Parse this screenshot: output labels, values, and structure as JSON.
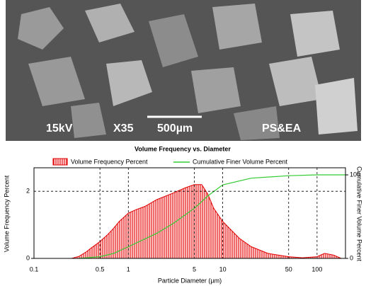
{
  "image": {
    "labels": [
      "15kV",
      "X35",
      "500µm",
      "PS&EA"
    ]
  },
  "chart_data": {
    "type": "area",
    "title": "Volume Frequency vs. Diameter",
    "x_label": "Particle Diameter (µm)",
    "y_label": "Volume Frequency Percent",
    "y2_label": "Cumulative Finer Volume Percent",
    "log_x": true,
    "grid": true,
    "xlim": [
      0.1,
      200
    ],
    "xticks": [
      0.1,
      0.5,
      1,
      5,
      10,
      50,
      100
    ],
    "ylim": [
      0,
      2.7
    ],
    "yticks": [
      0,
      2
    ],
    "y2lim": [
      0,
      108.5
    ],
    "y2ticks": [
      0,
      100
    ],
    "series": [
      {
        "name": "Volume Frequency Percent",
        "color": "#e00000",
        "kind": "area",
        "x": [
          0.25,
          0.3,
          0.36,
          0.4,
          0.5,
          0.6,
          0.7,
          0.8,
          1,
          1.2,
          1.5,
          2,
          3,
          4,
          5,
          6,
          7,
          8,
          10,
          15,
          20,
          30,
          50,
          70,
          100,
          120,
          150,
          180
        ],
        "values": [
          0,
          0.06,
          0.2,
          0.3,
          0.5,
          0.7,
          0.9,
          1.1,
          1.35,
          1.45,
          1.55,
          1.75,
          1.95,
          2.1,
          2.2,
          2.2,
          1.9,
          1.5,
          1.1,
          0.6,
          0.35,
          0.15,
          0.05,
          0.02,
          0.05,
          0.15,
          0.1,
          0
        ]
      },
      {
        "name": "Cumulative Finer Volume Percent",
        "color": "#33cc33",
        "kind": "line",
        "axis": "y2",
        "x": [
          0.3,
          0.5,
          0.7,
          1,
          2,
          3,
          5,
          7,
          10,
          20,
          50,
          100,
          200
        ],
        "values": [
          0,
          2,
          6,
          14,
          30,
          42,
          60,
          75,
          88,
          96,
          99,
          100,
          100
        ]
      }
    ]
  }
}
